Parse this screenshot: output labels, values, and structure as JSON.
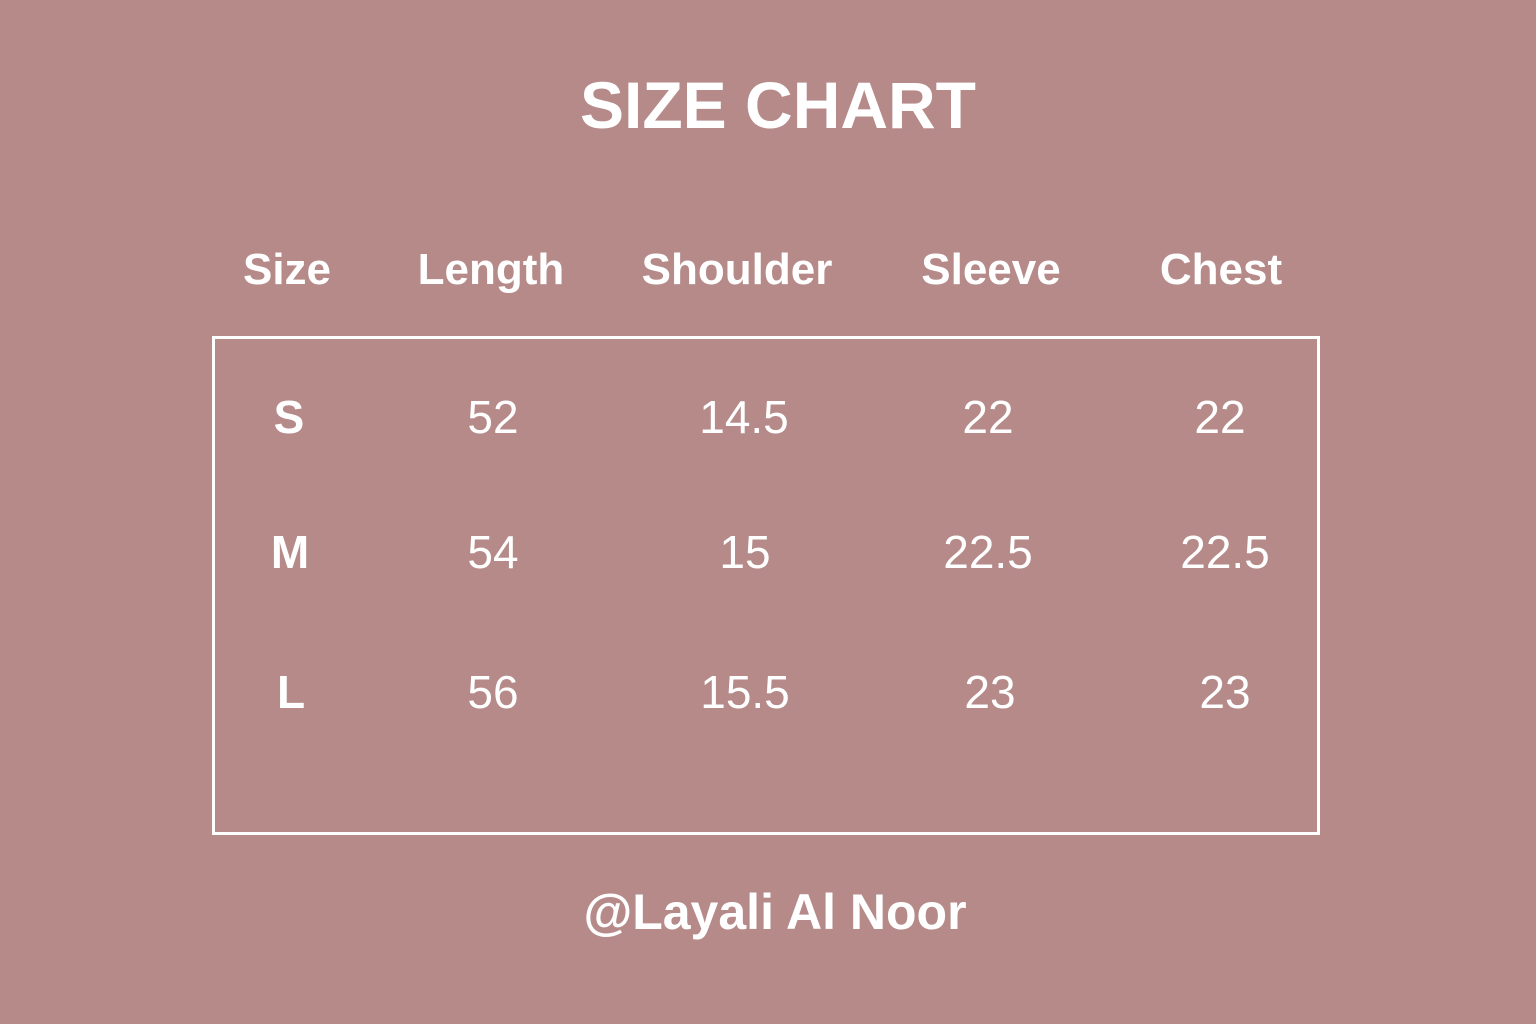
{
  "title": "SIZE CHART",
  "columns": [
    "Size",
    "Length",
    "Shoulder",
    "Sleeve",
    "Chest"
  ],
  "rows": [
    [
      "S",
      "52",
      "14.5",
      "22",
      "22"
    ],
    [
      "M",
      "54",
      "15",
      "22.5",
      "22.5"
    ],
    [
      "L",
      "56",
      "15.5",
      "23",
      "23"
    ]
  ],
  "footer": "@Layali Al Noor",
  "colors": {
    "background": "#b58a89",
    "text": "#ffffff"
  }
}
